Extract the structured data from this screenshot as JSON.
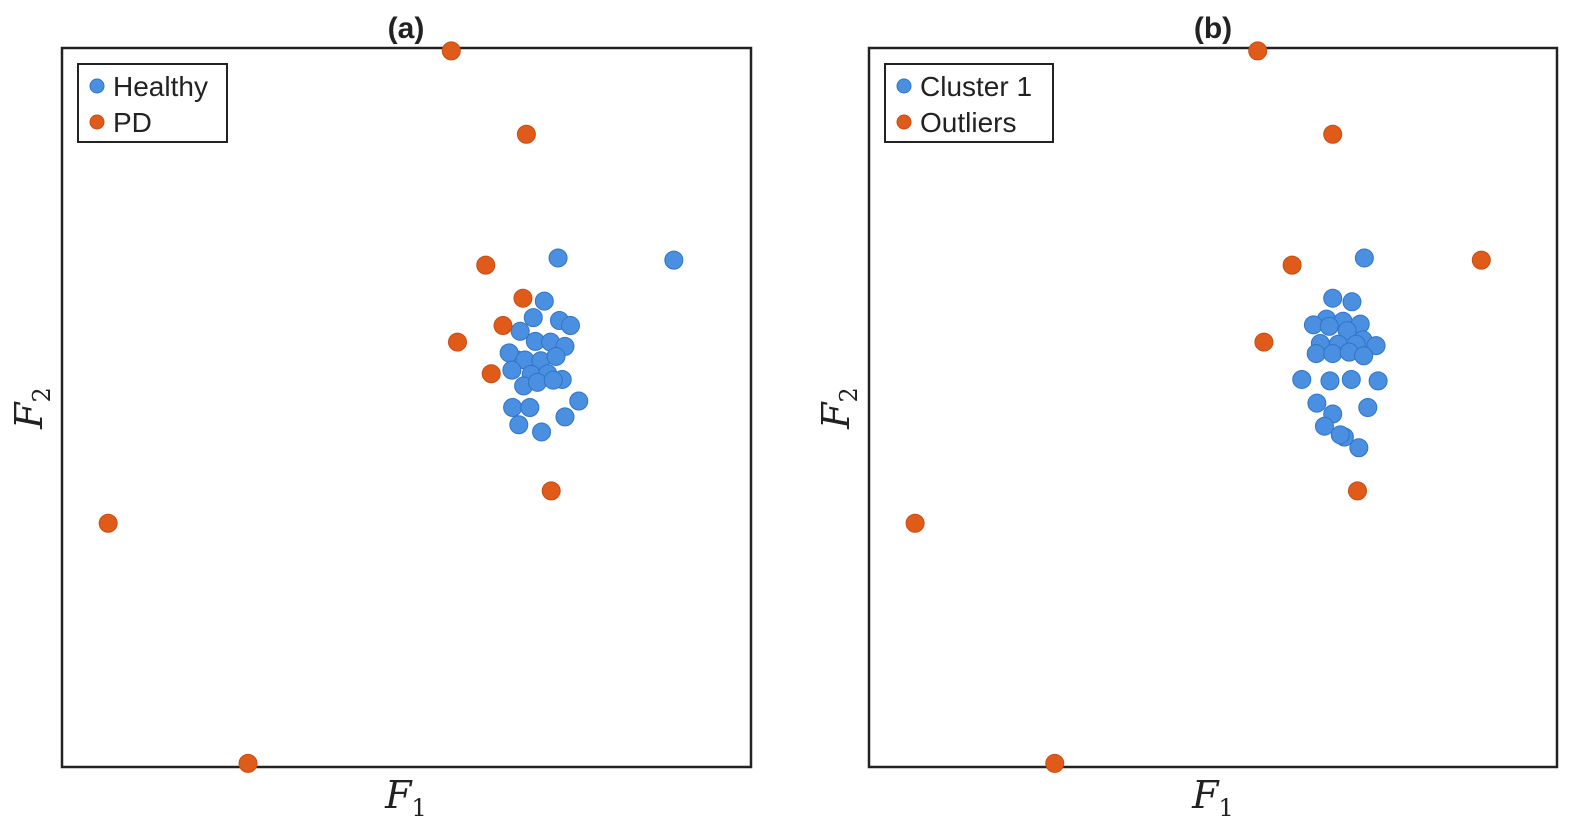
{
  "colors": {
    "cluster": "#4a8fe0",
    "cluster_edge": "#2f74c8",
    "outlier": "#e05a1a",
    "frame": "#222222"
  },
  "chart_data": [
    {
      "type": "scatter",
      "title": "(a)",
      "xlabel": {
        "main": "F",
        "sub": "1"
      },
      "ylabel": {
        "main": "F",
        "sub": "2"
      },
      "xlim": [
        0,
        100
      ],
      "ylim": [
        0,
        100
      ],
      "grid": false,
      "ticks": false,
      "legend_position": "top-left",
      "series": [
        {
          "name": "Healthy",
          "color": "#4a8fe0",
          "x": [
            72.0,
            88.8,
            70.0,
            66.5,
            72.2,
            68.4,
            73.8,
            66.1,
            68.7,
            70.9,
            73.0,
            64.9,
            67.2,
            69.5,
            71.7,
            65.3,
            68.1,
            70.5,
            72.6,
            67.0,
            69.0,
            71.3,
            75.0,
            65.4,
            67.9,
            73.0,
            66.3,
            69.6
          ],
          "y": [
            70.8,
            70.5,
            64.8,
            60.6,
            62.1,
            62.5,
            61.4,
            56.6,
            59.2,
            59.1,
            58.5,
            57.6,
            56.6,
            56.5,
            57.1,
            55.2,
            54.6,
            54.7,
            53.9,
            53.0,
            53.5,
            53.8,
            50.9,
            50.0,
            50.0,
            48.7,
            47.6,
            46.6
          ]
        },
        {
          "name": "PD",
          "color": "#e05a1a",
          "x": [
            56.5,
            67.4,
            61.5,
            66.9,
            64.0,
            57.4,
            62.3,
            71.0,
            6.7,
            27.0
          ],
          "y": [
            99.6,
            88.0,
            69.8,
            65.2,
            61.4,
            59.1,
            54.7,
            38.4,
            33.9,
            0.5
          ]
        }
      ]
    },
    {
      "type": "scatter",
      "title": "(b)",
      "xlabel": {
        "main": "F",
        "sub": "1"
      },
      "ylabel": {
        "main": "F",
        "sub": "2"
      },
      "xlim": [
        0,
        100
      ],
      "ylim": [
        0,
        100
      ],
      "grid": false,
      "ticks": false,
      "legend_position": "top-left",
      "series": [
        {
          "name": "Cluster 1",
          "color": "#4a8fe0",
          "x": [
            72.0,
            67.4,
            70.2,
            66.5,
            68.9,
            71.4,
            64.6,
            66.9,
            69.5,
            71.8,
            65.6,
            68.2,
            70.8,
            73.7,
            65.0,
            67.4,
            69.8,
            71.9,
            62.9,
            67.0,
            70.1,
            67.4,
            72.5,
            65.1,
            69.1,
            71.2,
            68.5,
            66.2,
            74.0
          ],
          "y": [
            70.8,
            65.2,
            64.7,
            62.3,
            62.0,
            61.6,
            61.5,
            61.3,
            60.7,
            59.4,
            58.9,
            58.8,
            58.8,
            58.6,
            57.5,
            57.5,
            57.7,
            57.2,
            53.9,
            53.7,
            53.9,
            49.1,
            50.0,
            50.6,
            45.9,
            44.4,
            46.2,
            47.4,
            53.7
          ]
        },
        {
          "name": "Outliers",
          "color": "#e05a1a",
          "x": [
            56.5,
            67.4,
            61.5,
            89.0,
            57.4,
            71.0,
            6.7,
            27.0
          ],
          "y": [
            99.6,
            88.0,
            69.8,
            70.5,
            59.1,
            38.4,
            33.9,
            0.5
          ]
        }
      ]
    }
  ]
}
